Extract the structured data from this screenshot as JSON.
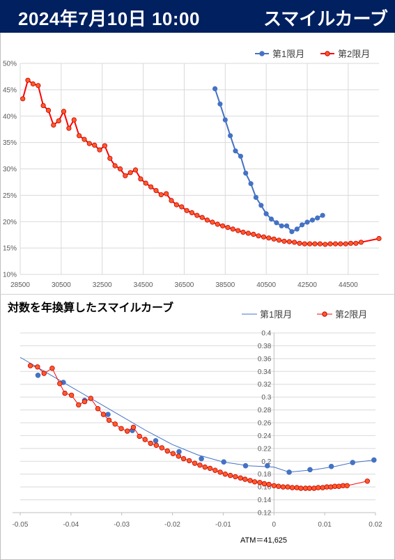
{
  "header": {
    "datetime": "2024年7月10日 10:00",
    "title": "スマイルカーブ"
  },
  "chart_data": [
    {
      "type": "line",
      "title": "",
      "xlabel": "",
      "ylabel": "",
      "xlim": [
        28500,
        46000
      ],
      "ylim": [
        10,
        50
      ],
      "x_ticks": [
        "28500",
        "30500",
        "32500",
        "34500",
        "36500",
        "38500",
        "40500",
        "42500",
        "44500"
      ],
      "y_ticks": [
        "10%",
        "15%",
        "20%",
        "25%",
        "30%",
        "35%",
        "40%",
        "45%",
        "50%"
      ],
      "legend_position": "top-right",
      "series": [
        {
          "name": "第1限月",
          "color": "#4472c4",
          "points": [
            [
              38000,
              45.2
            ],
            [
              38250,
              42.3
            ],
            [
              38500,
              39.3
            ],
            [
              38750,
              36.3
            ],
            [
              39000,
              33.4
            ],
            [
              39250,
              32.4
            ],
            [
              39500,
              29.2
            ],
            [
              39750,
              27.2
            ],
            [
              40000,
              24.6
            ],
            [
              40250,
              23.1
            ],
            [
              40500,
              21.5
            ],
            [
              40750,
              20.5
            ],
            [
              41000,
              19.8
            ],
            [
              41250,
              19.2
            ],
            [
              41500,
              19.2
            ],
            [
              41750,
              18.1
            ],
            [
              42000,
              18.6
            ],
            [
              42250,
              19.4
            ],
            [
              42500,
              19.9
            ],
            [
              42750,
              20.3
            ],
            [
              43000,
              20.7
            ],
            [
              43250,
              21.2
            ]
          ]
        },
        {
          "name": "第2限月",
          "color": "#ff0000",
          "points": [
            [
              28625,
              43.3
            ],
            [
              28875,
              46.8
            ],
            [
              29125,
              46.1
            ],
            [
              29375,
              45.8
            ],
            [
              29625,
              42.0
            ],
            [
              29875,
              41.1
            ],
            [
              30125,
              38.3
            ],
            [
              30375,
              39.1
            ],
            [
              30625,
              40.9
            ],
            [
              30875,
              37.7
            ],
            [
              31125,
              39.3
            ],
            [
              31375,
              36.3
            ],
            [
              31625,
              35.6
            ],
            [
              31875,
              34.8
            ],
            [
              32125,
              34.5
            ],
            [
              32375,
              33.6
            ],
            [
              32625,
              34.4
            ],
            [
              32875,
              32.0
            ],
            [
              33125,
              30.6
            ],
            [
              33375,
              30.0
            ],
            [
              33625,
              28.7
            ],
            [
              33875,
              29.3
            ],
            [
              34125,
              29.8
            ],
            [
              34375,
              28.1
            ],
            [
              34625,
              27.3
            ],
            [
              34875,
              26.6
            ],
            [
              35125,
              25.9
            ],
            [
              35375,
              25.1
            ],
            [
              35625,
              25.3
            ],
            [
              35875,
              24.0
            ],
            [
              36125,
              23.2
            ],
            [
              36375,
              22.8
            ],
            [
              36625,
              22.1
            ],
            [
              36875,
              21.7
            ],
            [
              37125,
              21.2
            ],
            [
              37375,
              20.8
            ],
            [
              37625,
              20.3
            ],
            [
              37875,
              19.9
            ],
            [
              38125,
              19.5
            ],
            [
              38375,
              19.2
            ],
            [
              38625,
              18.9
            ],
            [
              38875,
              18.6
            ],
            [
              39125,
              18.3
            ],
            [
              39375,
              18.0
            ],
            [
              39625,
              17.8
            ],
            [
              39875,
              17.6
            ],
            [
              40125,
              17.3
            ],
            [
              40375,
              17.1
            ],
            [
              40625,
              16.9
            ],
            [
              40875,
              16.7
            ],
            [
              41125,
              16.5
            ],
            [
              41375,
              16.3
            ],
            [
              41625,
              16.2
            ],
            [
              41875,
              16.1
            ],
            [
              42125,
              15.9
            ],
            [
              42375,
              15.8
            ],
            [
              42625,
              15.8
            ],
            [
              42875,
              15.8
            ],
            [
              43125,
              15.8
            ],
            [
              43375,
              15.7
            ],
            [
              43625,
              15.8
            ],
            [
              43875,
              15.8
            ],
            [
              44125,
              15.8
            ],
            [
              44375,
              15.8
            ],
            [
              44625,
              15.9
            ],
            [
              44875,
              15.9
            ],
            [
              45125,
              16.1
            ],
            [
              46000,
              16.8
            ]
          ]
        }
      ]
    },
    {
      "type": "scatter",
      "title": "対数を年換算したスマイルカーブ",
      "xlabel": "",
      "ylabel": "",
      "xlim": [
        -0.05,
        0.02
      ],
      "ylim": [
        0.12,
        0.4
      ],
      "x_ticks": [
        "-0.05",
        "-0.04",
        "-0.03",
        "-0.02",
        "-0.01",
        "0",
        "0.01",
        "0.02"
      ],
      "y_ticks": [
        "0.12",
        "0.14",
        "0.16",
        "0.18",
        "0.2",
        "0.22",
        "0.24",
        "0.26",
        "0.28",
        "0.3",
        "0.32",
        "0.34",
        "0.36",
        "0.38",
        "0.4"
      ],
      "legend_position": "top-right",
      "annotation": "ATM＝41,625",
      "series": [
        {
          "name": "第1限月",
          "color": "#4472c4",
          "fit_curve": [
            [
              -0.05,
              0.362
            ],
            [
              -0.045,
              0.339
            ],
            [
              -0.04,
              0.316
            ],
            [
              -0.035,
              0.293
            ],
            [
              -0.03,
              0.27
            ],
            [
              -0.025,
              0.247
            ],
            [
              -0.02,
              0.226
            ],
            [
              -0.015,
              0.21
            ],
            [
              -0.01,
              0.199
            ],
            [
              -0.005,
              0.193
            ],
            [
              0.0,
              0.191
            ],
            [
              0.003,
              0.183
            ],
            [
              0.008,
              0.187
            ],
            [
              0.012,
              0.192
            ],
            [
              0.0155,
              0.198
            ],
            [
              0.02,
              0.202
            ]
          ],
          "points": [
            [
              -0.0465,
              0.334
            ],
            [
              -0.0415,
              0.323
            ],
            [
              -0.0373,
              0.295
            ],
            [
              -0.0327,
              0.273
            ],
            [
              -0.0279,
              0.248
            ],
            [
              -0.0233,
              0.232
            ],
            [
              -0.0187,
              0.215
            ],
            [
              -0.0143,
              0.204
            ],
            [
              -0.0099,
              0.199
            ],
            [
              -0.0056,
              0.193
            ],
            [
              -0.0013,
              0.193
            ],
            [
              0.003,
              0.183
            ],
            [
              0.0071,
              0.187
            ],
            [
              0.0113,
              0.192
            ],
            [
              0.0155,
              0.198
            ],
            [
              0.0197,
              0.202
            ]
          ]
        },
        {
          "name": "第2限月",
          "color": "#ff0000",
          "points": [
            [
              -0.048,
              0.349
            ],
            [
              -0.0466,
              0.347
            ],
            [
              -0.0453,
              0.337
            ],
            [
              -0.0437,
              0.345
            ],
            [
              -0.0422,
              0.321
            ],
            [
              -0.0412,
              0.306
            ],
            [
              -0.0399,
              0.303
            ],
            [
              -0.0385,
              0.288
            ],
            [
              -0.0373,
              0.293
            ],
            [
              -0.0361,
              0.298
            ],
            [
              -0.0347,
              0.282
            ],
            [
              -0.0336,
              0.273
            ],
            [
              -0.0325,
              0.264
            ],
            [
              -0.0313,
              0.258
            ],
            [
              -0.0301,
              0.251
            ],
            [
              -0.0289,
              0.247
            ],
            [
              -0.0277,
              0.253
            ],
            [
              -0.0265,
              0.239
            ],
            [
              -0.0254,
              0.234
            ],
            [
              -0.0243,
              0.228
            ],
            [
              -0.0232,
              0.225
            ],
            [
              -0.0221,
              0.221
            ],
            [
              -0.021,
              0.216
            ],
            [
              -0.0199,
              0.212
            ],
            [
              -0.0188,
              0.208
            ],
            [
              -0.0178,
              0.204
            ],
            [
              -0.0167,
              0.201
            ],
            [
              -0.0156,
              0.197
            ],
            [
              -0.0146,
              0.194
            ],
            [
              -0.0136,
              0.191
            ],
            [
              -0.0126,
              0.189
            ],
            [
              -0.0116,
              0.186
            ],
            [
              -0.0106,
              0.183
            ],
            [
              -0.0096,
              0.18
            ],
            [
              -0.0086,
              0.178
            ],
            [
              -0.0076,
              0.176
            ],
            [
              -0.0066,
              0.174
            ],
            [
              -0.0057,
              0.172
            ],
            [
              -0.0047,
              0.17
            ],
            [
              -0.0038,
              0.168
            ],
            [
              -0.0028,
              0.167
            ],
            [
              -0.0019,
              0.165
            ],
            [
              -0.001,
              0.164
            ],
            [
              0.0,
              0.162
            ],
            [
              0.0009,
              0.161
            ],
            [
              0.0018,
              0.16
            ],
            [
              0.0027,
              0.16
            ],
            [
              0.0036,
              0.159
            ],
            [
              0.0045,
              0.159
            ],
            [
              0.0053,
              0.158
            ],
            [
              0.0062,
              0.158
            ],
            [
              0.007,
              0.158
            ],
            [
              0.0079,
              0.158
            ],
            [
              0.0087,
              0.159
            ],
            [
              0.0096,
              0.159
            ],
            [
              0.0104,
              0.16
            ],
            [
              0.0112,
              0.16
            ],
            [
              0.012,
              0.161
            ],
            [
              0.0128,
              0.161
            ],
            [
              0.0136,
              0.162
            ],
            [
              0.0144,
              0.162
            ],
            [
              0.0184,
              0.169
            ]
          ]
        }
      ]
    }
  ]
}
